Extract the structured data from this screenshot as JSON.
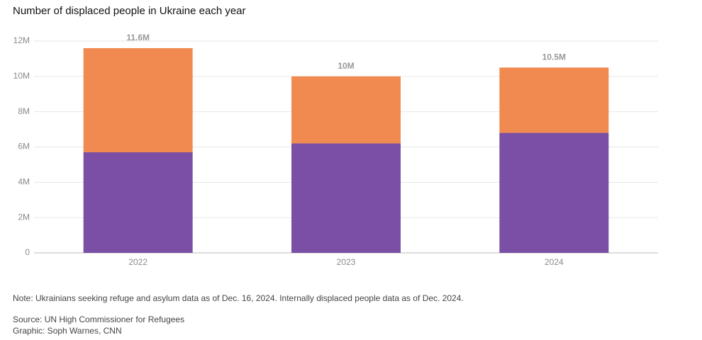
{
  "chart_data": {
    "type": "stacked-bar",
    "title": "Number of displaced people in Ukraine each year",
    "categories": [
      "2022",
      "2023",
      "2024"
    ],
    "series": [
      {
        "color": "#7b4fa6",
        "values": [
          5.7,
          6.2,
          6.8
        ]
      },
      {
        "color": "#f08a51",
        "values": [
          5.9,
          3.8,
          3.7
        ]
      }
    ],
    "totals": {
      "values": [
        11.6,
        10,
        10.5
      ],
      "value_labels": [
        "11.6M",
        "10M",
        "10.5M"
      ]
    },
    "ylim": [
      0,
      12
    ],
    "yticks": [
      0,
      {
        "value": 2,
        "label": "2M"
      },
      {
        "value": 4,
        "label": "4M"
      },
      {
        "value": 6,
        "label": "6M"
      },
      {
        "value": 8,
        "label": "8M"
      },
      {
        "value": 10,
        "label": "10M"
      },
      {
        "value": 12,
        "label": "12M"
      }
    ],
    "grid": true,
    "note": "Note: Ukrainians seeking refuge and asylum data as of Dec. 16, 2024. Internally displaced people data as of Dec. 2024.",
    "source": "Source: UN High Commissioner for Refugees",
    "credit": "Graphic: Soph Warnes, CNN"
  }
}
